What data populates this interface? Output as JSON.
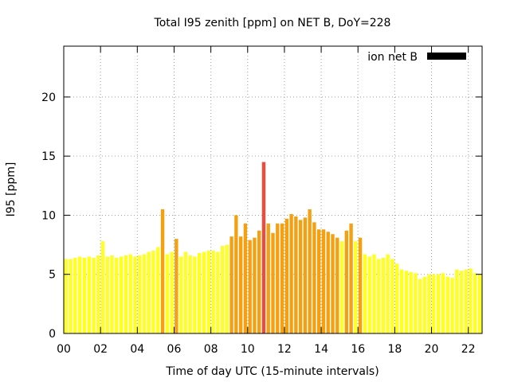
{
  "chart_data": {
    "type": "bar",
    "title": "Total I95 zenith [ppm] on NET B, DoY=228",
    "xlabel": "Time of day UTC (15-minute intervals)",
    "ylabel": "I95 [ppm]",
    "xlim": [
      0,
      22.75
    ],
    "ylim": [
      0,
      24.3
    ],
    "x_ticks": [
      0,
      2,
      4,
      6,
      8,
      10,
      12,
      14,
      16,
      18,
      20,
      22
    ],
    "x_tick_labels": [
      "00",
      "02",
      "04",
      "06",
      "08",
      "10",
      "12",
      "14",
      "16",
      "18",
      "20",
      "22"
    ],
    "y_ticks": [
      0,
      5,
      10,
      15,
      20
    ],
    "y_tick_labels": [
      "0",
      "5",
      "10",
      "15",
      "20"
    ],
    "grid": true,
    "legend": {
      "position": "top-right",
      "label": "ion net B",
      "color": "#000000"
    },
    "bar_interval_hours": 0.25,
    "colors": {
      "low": "#ffff22",
      "mid": "#f4a011",
      "high": "#ef4a3c"
    },
    "series": [
      {
        "name": "ion net B",
        "x": [
          0.0,
          0.25,
          0.5,
          0.75,
          1.0,
          1.25,
          1.5,
          1.75,
          2.0,
          2.25,
          2.5,
          2.75,
          3.0,
          3.25,
          3.5,
          3.75,
          4.0,
          4.25,
          4.5,
          4.75,
          5.0,
          5.25,
          5.5,
          5.75,
          6.0,
          6.25,
          6.5,
          6.75,
          7.0,
          7.25,
          7.5,
          7.75,
          8.0,
          8.25,
          8.5,
          8.75,
          9.0,
          9.25,
          9.5,
          9.75,
          10.0,
          10.25,
          10.5,
          10.75,
          11.0,
          11.25,
          11.5,
          11.75,
          12.0,
          12.25,
          12.5,
          12.75,
          13.0,
          13.25,
          13.5,
          13.75,
          14.0,
          14.25,
          14.5,
          14.75,
          15.0,
          15.25,
          15.5,
          15.75,
          16.0,
          16.25,
          16.5,
          16.75,
          17.0,
          17.25,
          17.5,
          17.75,
          18.0,
          18.25,
          18.5,
          18.75,
          19.0,
          19.25,
          19.5,
          19.75,
          20.0,
          20.25,
          20.5,
          20.75,
          21.0,
          21.25,
          21.5,
          21.75,
          22.0,
          22.25,
          22.5
        ],
        "values": [
          6.3,
          6.3,
          6.4,
          6.5,
          6.4,
          6.5,
          6.4,
          6.6,
          7.8,
          6.5,
          6.6,
          6.4,
          6.5,
          6.6,
          6.7,
          6.5,
          6.6,
          6.7,
          6.9,
          7.0,
          7.3,
          10.5,
          6.7,
          6.9,
          8.0,
          6.5,
          6.9,
          6.6,
          6.5,
          6.8,
          6.9,
          7.0,
          7.0,
          6.9,
          7.4,
          7.5,
          8.2,
          10.0,
          8.2,
          9.3,
          7.9,
          8.1,
          8.7,
          14.5,
          9.3,
          8.5,
          9.3,
          9.3,
          9.7,
          10.1,
          9.9,
          9.6,
          9.8,
          10.5,
          9.4,
          8.8,
          8.8,
          8.6,
          8.4,
          8.1,
          7.8,
          8.7,
          9.3,
          7.8,
          8.1,
          6.7,
          6.5,
          6.7,
          6.3,
          6.4,
          6.7,
          6.3,
          5.9,
          5.4,
          5.3,
          5.2,
          5.1,
          4.6,
          4.8,
          5.0,
          5.0,
          5.0,
          5.1,
          4.8,
          4.7,
          5.4,
          5.3,
          5.4,
          5.5,
          5.1,
          5.0
        ]
      }
    ]
  }
}
